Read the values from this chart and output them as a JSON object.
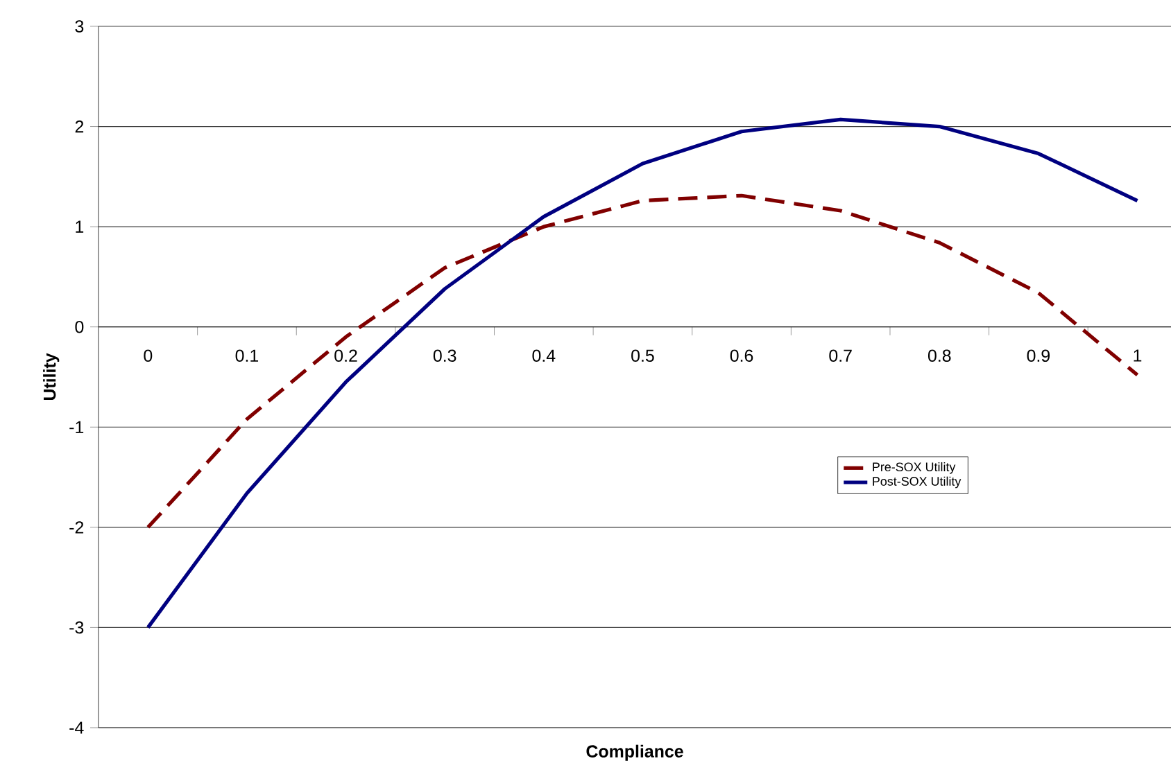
{
  "chart_data": {
    "type": "line",
    "xlabel": "Compliance",
    "ylabel": "Utility",
    "categories": [
      "0",
      "0.1",
      "0.2",
      "0.3",
      "0.4",
      "0.5",
      "0.6",
      "0.7",
      "0.8",
      "0.9",
      "1"
    ],
    "series": [
      {
        "name": "Pre-SOX Utility",
        "color": "#800000",
        "line_style": "dashed",
        "values": [
          -2,
          -0.92,
          -0.1,
          0.59,
          1.0,
          1.26,
          1.31,
          1.16,
          0.84,
          0.34,
          -0.48
        ]
      },
      {
        "name": "Post-SOX Utility",
        "color": "#000080",
        "line_style": "solid",
        "values": [
          -3,
          -1.66,
          -0.55,
          0.38,
          1.1,
          1.63,
          1.95,
          2.07,
          2.0,
          1.73,
          1.26
        ]
      }
    ],
    "ylim": [
      -4,
      3
    ],
    "yticks": [
      -4,
      -3,
      -2,
      -1,
      0,
      1,
      2,
      3
    ],
    "grid": "y",
    "legend": "right",
    "marker": "none"
  }
}
